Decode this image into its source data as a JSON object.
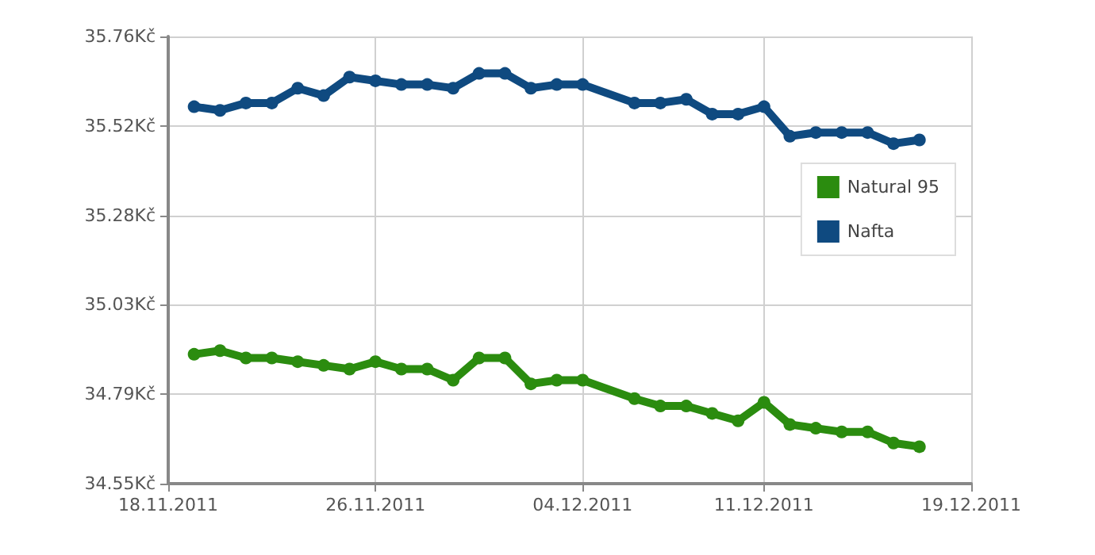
{
  "chart_data": {
    "type": "line",
    "x": [
      "2011-11-19",
      "2011-11-20",
      "2011-11-21",
      "2011-11-22",
      "2011-11-23",
      "2011-11-24",
      "2011-11-25",
      "2011-11-26",
      "2011-11-27",
      "2011-11-28",
      "2011-11-29",
      "2011-11-30",
      "2011-12-01",
      "2011-12-02",
      "2011-12-03",
      "2011-12-04",
      "2011-12-06",
      "2011-12-07",
      "2011-12-08",
      "2011-12-09",
      "2011-12-10",
      "2011-12-11",
      "2011-12-12",
      "2011-12-13",
      "2011-12-14",
      "2011-12-15",
      "2011-12-16",
      "2011-12-17"
    ],
    "series": [
      {
        "name": "Natural 95",
        "color": "#2b8c0f",
        "values": [
          34.9,
          34.91,
          34.89,
          34.89,
          34.88,
          34.87,
          34.86,
          34.88,
          34.86,
          34.86,
          34.83,
          34.89,
          34.89,
          34.82,
          34.83,
          34.83,
          34.78,
          34.76,
          34.76,
          34.74,
          34.72,
          34.77,
          34.71,
          34.7,
          34.69,
          34.69,
          34.66,
          34.65
        ]
      },
      {
        "name": "Nafta",
        "color": "#0f4a80",
        "values": [
          35.57,
          35.56,
          35.58,
          35.58,
          35.62,
          35.6,
          35.65,
          35.64,
          35.63,
          35.63,
          35.62,
          35.66,
          35.66,
          35.62,
          35.63,
          35.63,
          35.58,
          35.58,
          35.59,
          35.55,
          35.55,
          35.57,
          35.49,
          35.5,
          35.5,
          35.5,
          35.47,
          35.48
        ]
      }
    ],
    "xlim": [
      "2011-11-18",
      "2011-12-19"
    ],
    "xticks": [
      {
        "value": "2011-11-18",
        "label": "18.11.2011"
      },
      {
        "value": "2011-11-26",
        "label": "26.11.2011"
      },
      {
        "value": "2011-12-04",
        "label": "04.12.2011"
      },
      {
        "value": "2011-12-11",
        "label": "11.12.2011"
      },
      {
        "value": "2011-12-19",
        "label": "19.12.2011"
      }
    ],
    "ylim": [
      34.55,
      35.76
    ],
    "yticks": [
      {
        "value": 34.55,
        "label": "34.55Kč"
      },
      {
        "value": 34.792,
        "label": "34.79Kč"
      },
      {
        "value": 35.034,
        "label": "35.03Kč"
      },
      {
        "value": 35.276,
        "label": "35.28Kč"
      },
      {
        "value": 35.518,
        "label": "35.52Kč"
      },
      {
        "value": 35.76,
        "label": "35.76Kč"
      }
    ],
    "grid": true,
    "legend": "right",
    "marker": "circle",
    "line_style": "solid"
  }
}
